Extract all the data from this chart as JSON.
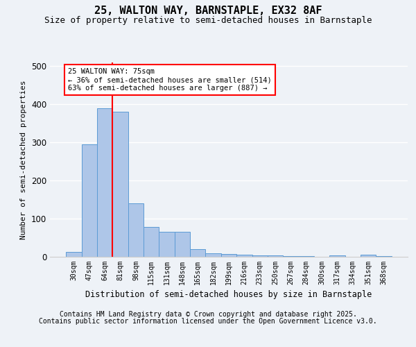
{
  "title": "25, WALTON WAY, BARNSTAPLE, EX32 8AF",
  "subtitle": "Size of property relative to semi-detached houses in Barnstaple",
  "xlabel": "Distribution of semi-detached houses by size in Barnstaple",
  "ylabel": "Number of semi-detached properties",
  "categories": [
    "30sqm",
    "47sqm",
    "64sqm",
    "81sqm",
    "98sqm",
    "115sqm",
    "131sqm",
    "148sqm",
    "165sqm",
    "182sqm",
    "199sqm",
    "216sqm",
    "233sqm",
    "250sqm",
    "267sqm",
    "284sqm",
    "300sqm",
    "317sqm",
    "334sqm",
    "351sqm",
    "368sqm"
  ],
  "values": [
    12,
    295,
    390,
    380,
    140,
    78,
    65,
    65,
    20,
    9,
    8,
    6,
    4,
    3,
    2,
    2,
    0,
    3,
    0,
    6,
    2
  ],
  "bar_color": "#aec6e8",
  "bar_edge_color": "#5b9bd5",
  "vline_x": 2.5,
  "vline_color": "red",
  "annotation_text": "25 WALTON WAY: 75sqm\n← 36% of semi-detached houses are smaller (514)\n63% of semi-detached houses are larger (887) →",
  "annotation_box_color": "white",
  "annotation_box_edge": "red",
  "footnote_line1": "Contains HM Land Registry data © Crown copyright and database right 2025.",
  "footnote_line2": "Contains public sector information licensed under the Open Government Licence v3.0.",
  "ylim": [
    0,
    510
  ],
  "background_color": "#eef2f7",
  "plot_background": "#eef2f7",
  "grid_color": "white",
  "title_fontsize": 11,
  "subtitle_fontsize": 9,
  "footnote_fontsize": 7
}
